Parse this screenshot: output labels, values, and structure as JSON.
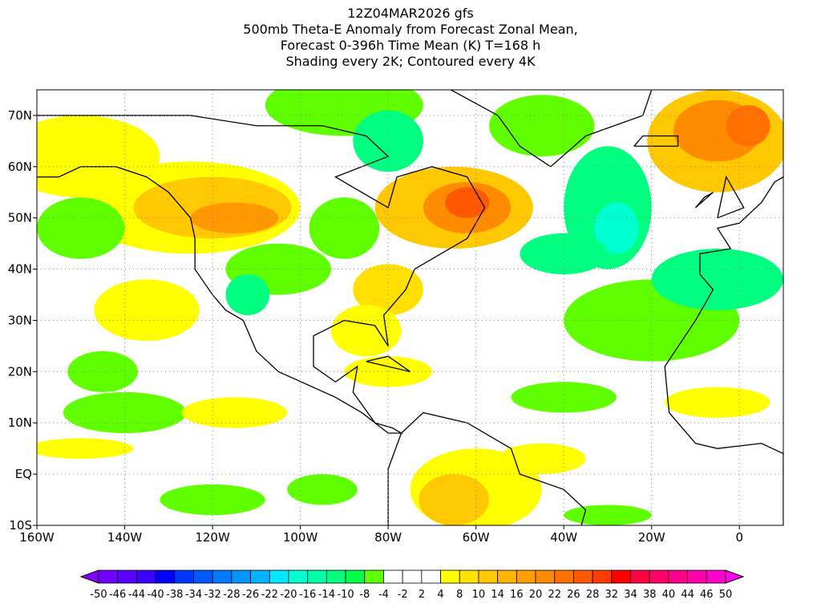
{
  "title": {
    "line1": "12Z04MAR2026 gfs",
    "line2": "500mb Theta-E Anomaly from Forecast Zonal Mean,",
    "line3": "Forecast 0-396h Time Mean (K) T=168 h",
    "line4": "Shading every 2K; Contoured every 4K"
  },
  "map": {
    "lon_range": [
      -160,
      10
    ],
    "lat_range": [
      -10,
      75
    ],
    "x_ticks": [
      {
        "value": -160,
        "label": "160W"
      },
      {
        "value": -140,
        "label": "140W"
      },
      {
        "value": -120,
        "label": "120W"
      },
      {
        "value": -100,
        "label": "100W"
      },
      {
        "value": -80,
        "label": "80W"
      },
      {
        "value": -60,
        "label": "60W"
      },
      {
        "value": -40,
        "label": "40W"
      },
      {
        "value": -20,
        "label": "20W"
      },
      {
        "value": 0,
        "label": "0"
      }
    ],
    "y_ticks": [
      {
        "value": -10,
        "label": "10S"
      },
      {
        "value": 0,
        "label": "EQ"
      },
      {
        "value": 10,
        "label": "10N"
      },
      {
        "value": 20,
        "label": "20N"
      },
      {
        "value": 30,
        "label": "30N"
      },
      {
        "value": 40,
        "label": "40N"
      },
      {
        "value": 50,
        "label": "50N"
      },
      {
        "value": 60,
        "label": "60N"
      },
      {
        "value": 70,
        "label": "70N"
      }
    ]
  },
  "colorbar": {
    "labels": [
      "-50",
      "-46",
      "-44",
      "-40",
      "-38",
      "-34",
      "-32",
      "-28",
      "-26",
      "-22",
      "-20",
      "-16",
      "-14",
      "-10",
      "-8",
      "-4",
      "-2",
      "2",
      "4",
      "8",
      "10",
      "14",
      "16",
      "20",
      "22",
      "26",
      "28",
      "32",
      "34",
      "38",
      "40",
      "44",
      "46",
      "50"
    ],
    "colors": [
      "#8000ff",
      "#7000ff",
      "#5a00ff",
      "#3c00ff",
      "#0000ff",
      "#0038ff",
      "#0058ff",
      "#0078ff",
      "#0096ff",
      "#00b4ff",
      "#00e8ff",
      "#00ffd0",
      "#00ffa8",
      "#00ff80",
      "#00ff48",
      "#60ff00",
      "#ffffff",
      "#ffffff",
      "#ffffff",
      "#ffff00",
      "#ffe000",
      "#ffc800",
      "#ffb400",
      "#ffa000",
      "#ff8c00",
      "#ff7000",
      "#ff5800",
      "#ff3c00",
      "#ff0000",
      "#ff0040",
      "#ff0068",
      "#ff008c",
      "#ff00a8",
      "#ff00c8",
      "#ff00f0"
    ]
  }
}
